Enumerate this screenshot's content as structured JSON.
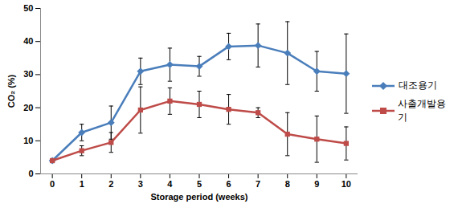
{
  "chart_data": {
    "type": "line",
    "x": [
      0,
      1,
      2,
      3,
      4,
      5,
      6,
      7,
      8,
      9,
      10
    ],
    "xlabel": "Storage period (weeks)",
    "ylabel": "CO₂ (%)",
    "xlim": [
      -0.4,
      10.4
    ],
    "xticks": [
      0,
      1,
      2,
      3,
      4,
      5,
      6,
      7,
      8,
      9,
      10
    ],
    "ylim": [
      0,
      50
    ],
    "yticks": [
      0,
      10,
      20,
      30,
      40,
      50
    ],
    "grid": false,
    "legend": "right",
    "series": [
      {
        "name": "대조용기",
        "color": "#4a7ebb",
        "marker": "diamond",
        "values": [
          4,
          12.5,
          15.5,
          31,
          33,
          32.5,
          38.5,
          38.8,
          36.5,
          31,
          30.3
        ],
        "errors": [
          0.5,
          2.5,
          5,
          4,
          5,
          3,
          4,
          6.5,
          9.5,
          6,
          12
        ]
      },
      {
        "name": "사출개발용기",
        "color": "#be4b48",
        "marker": "square",
        "values": [
          4,
          7,
          9.5,
          19.3,
          22,
          21,
          19.5,
          18.5,
          12,
          10.5,
          9.2
        ],
        "errors": [
          0.5,
          1.5,
          3,
          7,
          4,
          4,
          4.5,
          1.5,
          6.5,
          7,
          5
        ]
      }
    ]
  }
}
